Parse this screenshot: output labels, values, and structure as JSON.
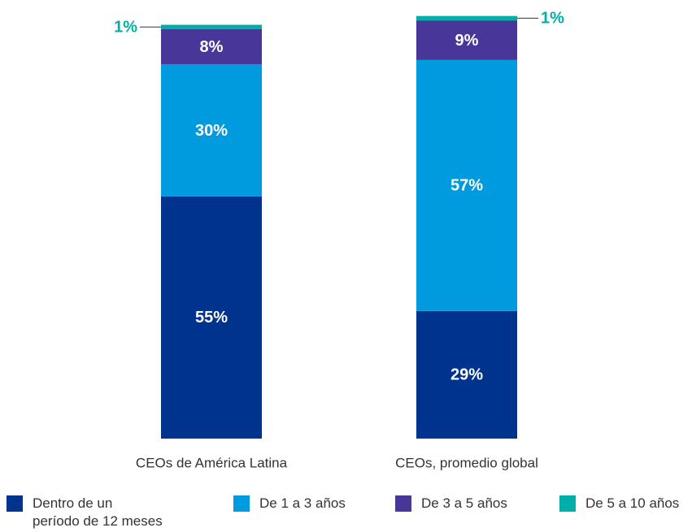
{
  "chart_data": {
    "type": "stacked_bar",
    "categories": [
      "CEOs de América Latina",
      "CEOs, promedio global"
    ],
    "series": [
      {
        "name": "Dentro de un período de 12 meses",
        "color": "#00338D",
        "values": [
          55,
          29
        ],
        "value_labels": [
          "55%",
          "29%"
        ]
      },
      {
        "name": "De 1 a 3 años",
        "color": "#009ADE",
        "values": [
          30,
          57
        ],
        "value_labels": [
          "30%",
          "57%"
        ]
      },
      {
        "name": "De 3 a 5 años",
        "color": "#483698",
        "values": [
          8,
          9
        ],
        "value_labels": [
          "8%",
          "9%"
        ]
      },
      {
        "name": "De 5 a 10 años",
        "color": "#00B0A8",
        "values": [
          1,
          1
        ],
        "value_labels": [
          "1%",
          "1%"
        ]
      }
    ],
    "ylim": [
      0,
      100
    ]
  }
}
